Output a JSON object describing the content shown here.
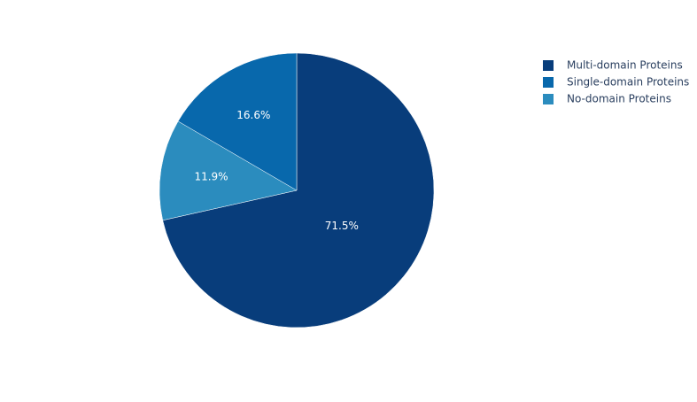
{
  "chart_data": {
    "type": "pie",
    "categories": [
      "Multi-domain Proteins",
      "Single-domain Proteins",
      "No-domain Proteins"
    ],
    "values": [
      71.5,
      16.6,
      11.9
    ],
    "value_labels": [
      "71.5%",
      "16.6%",
      "11.9%"
    ],
    "colors": [
      "#083d7b",
      "#0868ac",
      "#2b8cbe"
    ]
  }
}
